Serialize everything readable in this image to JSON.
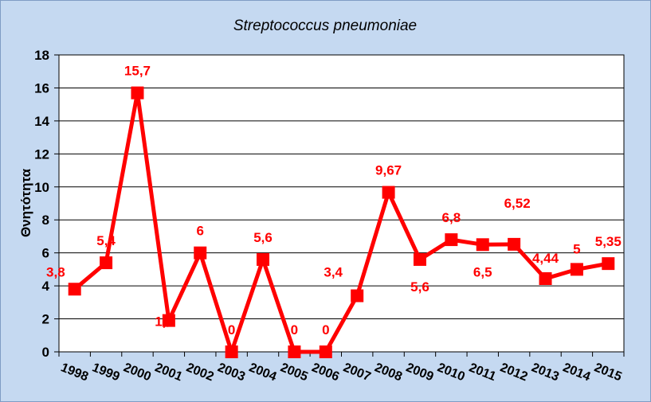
{
  "chart_data": {
    "type": "line",
    "title": "Streptococcus pneumoniae",
    "xlabel": "",
    "ylabel": "Θνητότητα",
    "categories": [
      "1998",
      "1999",
      "2000",
      "2001",
      "2002",
      "2003",
      "2004",
      "2005",
      "2006",
      "2007",
      "2008",
      "2009",
      "2010",
      "2011",
      "2012",
      "2013",
      "2014",
      "2015"
    ],
    "series": [
      {
        "values": [
          3.8,
          5.4,
          15.7,
          1.9,
          6,
          0,
          5.6,
          0,
          0,
          3.4,
          9.67,
          5.6,
          6.8,
          6.5,
          6.52,
          4.44,
          5,
          5.35
        ],
        "labels": [
          "3,8",
          "5,4",
          "15,7",
          "1,9",
          "6",
          "0",
          "5,6",
          "0",
          "0",
          "3,4",
          "9,67",
          "5,6",
          "6,8",
          "6,5",
          "6,52",
          "4,44",
          "5",
          "5,35"
        ]
      }
    ],
    "ylim": [
      0,
      18
    ],
    "yticks": [
      0,
      2,
      4,
      6,
      8,
      10,
      12,
      14,
      16,
      18
    ],
    "grid": true,
    "legend": "none",
    "colors": {
      "line": "#ff0000",
      "marker": "#ff0000",
      "label": "#ff0000",
      "plot_bg": "#ffffff",
      "chart_bg": "#c5d9f1"
    }
  }
}
